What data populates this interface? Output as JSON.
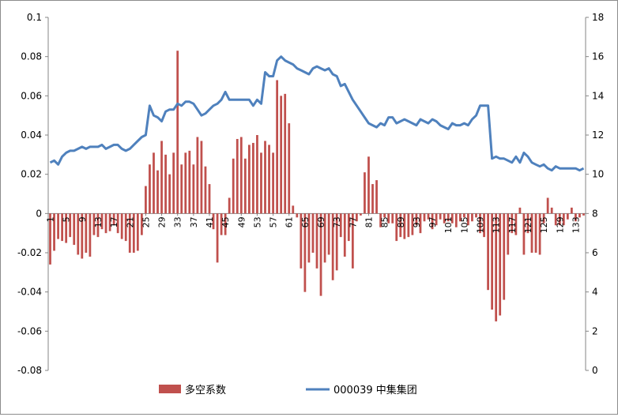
{
  "chart_data": {
    "type": "bar+line",
    "title": "",
    "left_axis": {
      "ylim": [
        -0.08,
        0.1
      ],
      "ticks": [
        "-0.08",
        "-0.06",
        "-0.04",
        "-0.02",
        "0",
        "0.02",
        "0.04",
        "0.06",
        "0.08",
        "0.1"
      ]
    },
    "right_axis": {
      "ylim": [
        0,
        18
      ],
      "ticks": [
        "0",
        "2",
        "4",
        "6",
        "8",
        "10",
        "12",
        "14",
        "16",
        "18"
      ]
    },
    "x": {
      "start": 1,
      "end": 135,
      "tick_labels": [
        "1",
        "5",
        "9",
        "13",
        "17",
        "21",
        "25",
        "29",
        "33",
        "37",
        "41",
        "45",
        "49",
        "53",
        "57",
        "61",
        "65",
        "69",
        "73",
        "77",
        "81",
        "85",
        "89",
        "93",
        "97",
        "101",
        "105",
        "109",
        "113",
        "117",
        "121",
        "125",
        "129",
        "133"
      ]
    },
    "legend_position": "bottom",
    "series": [
      {
        "name": "多空系数",
        "type": "bar",
        "axis": "left",
        "color": "#C0504D",
        "values": [
          -0.026,
          -0.019,
          -0.013,
          -0.014,
          -0.015,
          -0.012,
          -0.016,
          -0.021,
          -0.023,
          -0.02,
          -0.022,
          -0.011,
          -0.012,
          -0.008,
          -0.01,
          -0.009,
          -0.006,
          -0.01,
          -0.013,
          -0.014,
          -0.02,
          -0.02,
          -0.019,
          -0.011,
          0.014,
          0.025,
          0.031,
          0.022,
          0.037,
          0.03,
          0.02,
          0.031,
          0.083,
          0.025,
          0.031,
          0.032,
          0.025,
          0.039,
          0.037,
          0.024,
          0.015,
          -0.008,
          -0.025,
          -0.011,
          -0.011,
          0.008,
          0.028,
          0.038,
          0.039,
          0.028,
          0.035,
          0.036,
          0.04,
          0.031,
          0.037,
          0.035,
          0.031,
          0.068,
          0.06,
          0.061,
          0.046,
          0.004,
          -0.002,
          -0.028,
          -0.04,
          -0.025,
          -0.02,
          -0.028,
          -0.042,
          -0.025,
          -0.021,
          -0.034,
          -0.029,
          -0.012,
          -0.022,
          -0.014,
          -0.028,
          -0.004,
          -0.001,
          0.021,
          0.029,
          0.015,
          0.017,
          -0.007,
          -0.002,
          -0.005,
          -0.005,
          -0.014,
          -0.012,
          -0.013,
          -0.012,
          -0.011,
          -0.006,
          -0.01,
          -0.004,
          -0.003,
          -0.008,
          -0.006,
          -0.003,
          -0.005,
          -0.004,
          -0.005,
          -0.007,
          -0.004,
          -0.002,
          -0.006,
          -0.004,
          -0.002,
          -0.01,
          -0.012,
          -0.039,
          -0.049,
          -0.055,
          -0.052,
          -0.044,
          -0.021,
          -0.01,
          -0.011,
          0.003,
          -0.021,
          -0.01,
          -0.02,
          -0.02,
          -0.021,
          -0.005,
          0.008,
          0.003,
          -0.006,
          -0.006,
          -0.006,
          -0.003,
          0.003,
          -0.004,
          -0.002,
          -0.001
        ]
      },
      {
        "name": "000039 中集集团",
        "type": "line",
        "axis": "right",
        "color": "#4F81BD",
        "values": [
          10.6,
          10.7,
          10.5,
          10.9,
          11.1,
          11.2,
          11.2,
          11.3,
          11.4,
          11.3,
          11.4,
          11.4,
          11.4,
          11.5,
          11.3,
          11.4,
          11.5,
          11.5,
          11.3,
          11.2,
          11.3,
          11.5,
          11.7,
          11.9,
          12.0,
          13.5,
          13.0,
          12.9,
          12.7,
          13.2,
          13.3,
          13.3,
          13.6,
          13.5,
          13.7,
          13.7,
          13.6,
          13.3,
          13.0,
          13.1,
          13.3,
          13.5,
          13.6,
          13.8,
          14.2,
          13.8,
          13.8,
          13.8,
          13.8,
          13.8,
          13.8,
          13.5,
          13.8,
          13.6,
          15.2,
          15.0,
          15.0,
          15.8,
          16.0,
          15.8,
          15.7,
          15.6,
          15.4,
          15.3,
          15.2,
          15.1,
          15.4,
          15.5,
          15.4,
          15.3,
          15.4,
          15.1,
          15.0,
          14.5,
          14.6,
          14.2,
          13.8,
          13.5,
          13.2,
          12.9,
          12.6,
          12.5,
          12.4,
          12.6,
          12.5,
          12.9,
          12.9,
          12.6,
          12.7,
          12.8,
          12.7,
          12.6,
          12.5,
          12.8,
          12.7,
          12.6,
          12.8,
          12.7,
          12.5,
          12.4,
          12.3,
          12.6,
          12.5,
          12.5,
          12.6,
          12.5,
          12.8,
          13.0,
          13.5,
          13.5,
          13.5,
          10.8,
          10.9,
          10.8,
          10.8,
          10.7,
          10.6,
          10.9,
          10.6,
          11.1,
          10.9,
          10.6,
          10.5,
          10.4,
          10.5,
          10.3,
          10.2,
          10.4,
          10.3,
          10.3,
          10.3,
          10.3,
          10.3,
          10.2,
          10.3
        ]
      }
    ]
  }
}
